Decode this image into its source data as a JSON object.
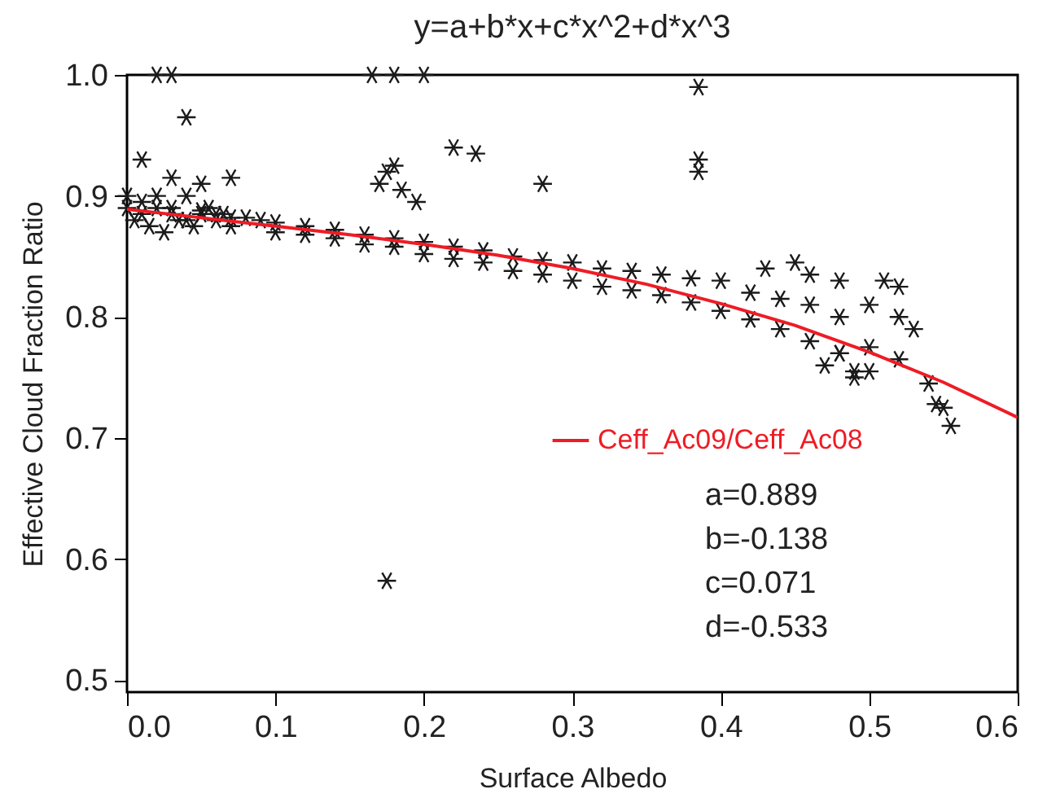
{
  "chart_data": {
    "type": "scatter",
    "title": "y=a+b*x+c*x^2+d*x^3",
    "xlabel": "Surface Albedo",
    "ylabel": "Effective Cloud Fraction Ratio",
    "xlim": [
      0,
      0.6
    ],
    "xticks": [
      {
        "value": 0,
        "label": "0.0"
      },
      0.1,
      0.2,
      0.3,
      0.4,
      0.5,
      0.6
    ],
    "ylim": [
      0.49,
      1.0
    ],
    "yticks": [
      0.5,
      0.6,
      0.7,
      0.8,
      0.9,
      {
        "value": 1,
        "label": "1.0"
      }
    ],
    "grid": false,
    "legend": "right",
    "annotations": [
      "a=0.889",
      "b=-0.138",
      "c=0.071",
      "d=-0.533"
    ],
    "series": [
      {
        "color": "#1a1a1a",
        "marker": "cross",
        "x": [
          0.0,
          0.005,
          0.01,
          0.015,
          0.02,
          0.025,
          0.03,
          0.035,
          0.04,
          0.045,
          0.05,
          0.055,
          0.06,
          0.065,
          0.07,
          0.0,
          0.01,
          0.02,
          0.03,
          0.04,
          0.05,
          0.06,
          0.07,
          0.08,
          0.09,
          0.1,
          0.12,
          0.14,
          0.16,
          0.18,
          0.2,
          0.22,
          0.24,
          0.26,
          0.28,
          0.3,
          0.32,
          0.34,
          0.36,
          0.38,
          0.4,
          0.42,
          0.44,
          0.46,
          0.48,
          0.1,
          0.12,
          0.14,
          0.16,
          0.18,
          0.2,
          0.22,
          0.24,
          0.26,
          0.28,
          0.3,
          0.32,
          0.34,
          0.36,
          0.38,
          0.4,
          0.42,
          0.44,
          0.46,
          0.48,
          0.49,
          0.01,
          0.02,
          0.03,
          0.04,
          0.03,
          0.05,
          0.07,
          0.17,
          0.18,
          0.175,
          0.185,
          0.195,
          0.22,
          0.235,
          0.165,
          0.18,
          0.2,
          0.28,
          0.385,
          0.385,
          0.385,
          0.175,
          0.43,
          0.45,
          0.46,
          0.48,
          0.51,
          0.52,
          0.5,
          0.52,
          0.53,
          0.5,
          0.52,
          0.54,
          0.545,
          0.55,
          0.555,
          0.49,
          0.5,
          0.47,
          0.48
        ],
        "values": [
          0.9,
          0.88,
          0.895,
          0.875,
          0.9,
          0.87,
          0.89,
          0.88,
          0.9,
          0.875,
          0.885,
          0.89,
          0.88,
          0.885,
          0.875,
          0.89,
          0.885,
          0.89,
          0.885,
          0.88,
          0.888,
          0.885,
          0.882,
          0.882,
          0.88,
          0.878,
          0.875,
          0.872,
          0.868,
          0.865,
          0.862,
          0.858,
          0.855,
          0.85,
          0.847,
          0.845,
          0.84,
          0.838,
          0.835,
          0.832,
          0.83,
          0.82,
          0.815,
          0.81,
          0.8,
          0.87,
          0.868,
          0.865,
          0.86,
          0.858,
          0.852,
          0.848,
          0.845,
          0.838,
          0.835,
          0.83,
          0.825,
          0.822,
          0.818,
          0.812,
          0.805,
          0.798,
          0.79,
          0.78,
          0.77,
          0.755,
          0.93,
          1.0,
          1.0,
          0.965,
          0.915,
          0.91,
          0.915,
          0.91,
          0.925,
          0.92,
          0.905,
          0.895,
          0.94,
          0.935,
          1.0,
          1.0,
          1.0,
          0.91,
          0.99,
          0.93,
          0.92,
          0.582,
          0.84,
          0.845,
          0.835,
          0.83,
          0.83,
          0.825,
          0.81,
          0.8,
          0.79,
          0.775,
          0.765,
          0.745,
          0.728,
          0.725,
          0.71,
          0.75,
          0.755,
          0.76,
          0.77
        ]
      },
      {
        "type": "line",
        "name": "Ceff_Ac09/Ceff_Ac08",
        "color": "#ee1c25",
        "x": [
          0,
          0.05,
          0.1,
          0.15,
          0.2,
          0.25,
          0.3,
          0.35,
          0.4,
          0.45,
          0.5,
          0.55,
          0.6
        ],
        "values": [
          0.889,
          0.882,
          0.875,
          0.868,
          0.86,
          0.851,
          0.84,
          0.827,
          0.811,
          0.793,
          0.771,
          0.746,
          0.717
        ]
      }
    ]
  }
}
